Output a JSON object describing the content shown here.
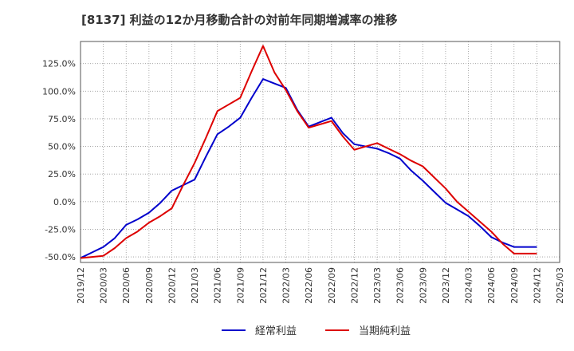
{
  "chart_data": {
    "type": "line",
    "title": "[8137]  利益の12か月移動合計の対前年同期増減率の推移",
    "xlabel": "",
    "ylabel": "",
    "ylim": [
      -55,
      145
    ],
    "y_ticks": [
      -50,
      -25,
      0,
      25,
      50,
      75,
      100,
      125
    ],
    "y_tick_labels": [
      "-50.0%",
      "-25.0%",
      "0.0%",
      "25.0%",
      "50.0%",
      "75.0%",
      "100.0%",
      "125.0%"
    ],
    "x_tick_labels": [
      "2019/12",
      "2020/03",
      "2020/06",
      "2020/09",
      "2020/12",
      "2021/03",
      "2021/06",
      "2021/09",
      "2021/12",
      "2022/03",
      "2022/06",
      "2022/09",
      "2022/12",
      "2023/03",
      "2023/06",
      "2023/09",
      "2023/12",
      "2024/03",
      "2024/06",
      "2024/09",
      "2024/12",
      "2025/03"
    ],
    "grid": true,
    "legend_position": "bottom",
    "series": [
      {
        "name": "経常利益",
        "color": "#0000cc",
        "values": [
          -51,
          -46,
          -41,
          -33,
          -21,
          -16,
          -10,
          -1,
          10,
          15,
          20,
          41,
          61,
          68,
          76,
          94,
          111,
          107,
          103,
          83,
          68,
          72,
          76,
          62,
          52,
          50,
          48,
          44,
          39,
          28,
          19,
          9,
          -1,
          -7,
          -13,
          -22,
          -32,
          -37,
          -41,
          -41,
          -41
        ]
      },
      {
        "name": "当期純利益",
        "color": "#dd0000",
        "values": [
          -51,
          -50,
          -49,
          -42,
          -33,
          -27,
          -19,
          -13,
          -6,
          15,
          35,
          58,
          82,
          88,
          94,
          118,
          141,
          117,
          101,
          82,
          67,
          70,
          73,
          59,
          47,
          50,
          53,
          48,
          43,
          37,
          32,
          22,
          12,
          0,
          -9,
          -18,
          -27,
          -38,
          -47,
          -47,
          -47
        ]
      }
    ]
  }
}
